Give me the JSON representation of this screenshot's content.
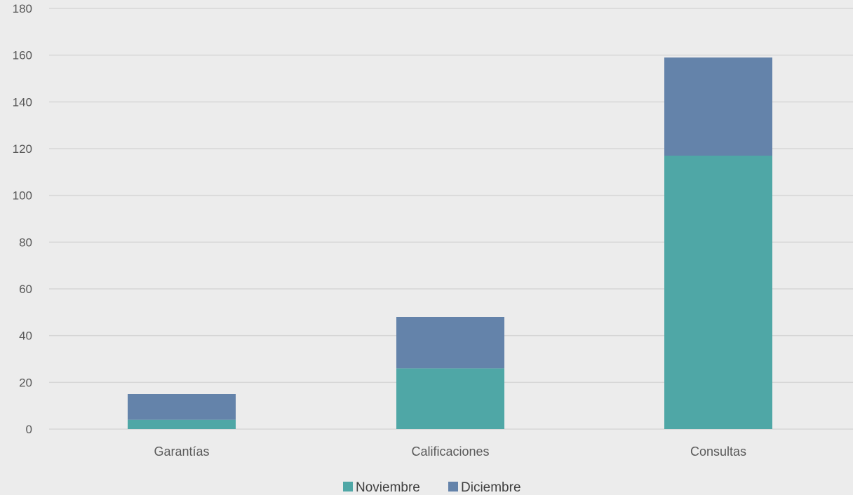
{
  "chart_data": {
    "type": "bar",
    "stacked": true,
    "categories": [
      "Garantías",
      "Calificaciones",
      "Consultas"
    ],
    "series": [
      {
        "name": "Noviembre",
        "values": [
          4,
          26,
          117
        ],
        "color": "#4fa7a6"
      },
      {
        "name": "Diciembre",
        "values": [
          11,
          22,
          42
        ],
        "color": "#6483aa"
      }
    ],
    "title": "",
    "xlabel": "",
    "ylabel": "",
    "ylim": [
      0,
      180
    ],
    "yticks": [
      0,
      20,
      40,
      60,
      80,
      100,
      120,
      140,
      160,
      180
    ],
    "grid": true,
    "legend_position": "bottom",
    "background": "#ececec"
  }
}
